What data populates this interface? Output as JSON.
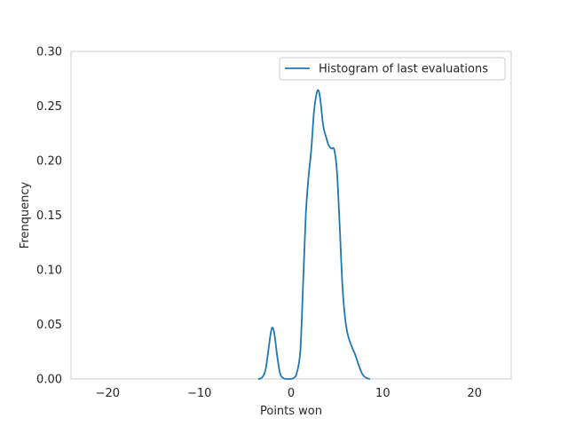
{
  "chart_data": {
    "type": "line",
    "title": "",
    "xlabel": "Points won",
    "ylabel": "Frenquency",
    "xlim": [
      -24,
      24
    ],
    "ylim": [
      0,
      0.3
    ],
    "xticks": [
      -20,
      -10,
      0,
      10,
      20
    ],
    "xtick_labels": [
      "−20",
      "−10",
      "0",
      "10",
      "20"
    ],
    "yticks": [
      0.0,
      0.05,
      0.1,
      0.15,
      0.2,
      0.25,
      0.3
    ],
    "ytick_labels": [
      "0.00",
      "0.05",
      "0.10",
      "0.15",
      "0.20",
      "0.25",
      "0.30"
    ],
    "grid": false,
    "legend_position": "top-right",
    "series": [
      {
        "name": "Histogram of last evaluations",
        "color": "#1f77b4",
        "x": [
          -3.6,
          -3.2,
          -2.8,
          -2.5,
          -2.2,
          -2.0,
          -1.8,
          -1.5,
          -1.2,
          -0.9,
          -0.6,
          -0.3,
          0.0,
          0.3,
          0.6,
          1.0,
          1.3,
          1.6,
          1.9,
          2.2,
          2.5,
          2.8,
          3.0,
          3.2,
          3.5,
          3.8,
          4.1,
          4.4,
          4.7,
          5.0,
          5.3,
          5.6,
          5.9,
          6.2,
          6.6,
          7.0,
          7.4,
          7.8,
          8.2,
          8.6
        ],
        "y": [
          0.0,
          0.001,
          0.008,
          0.025,
          0.043,
          0.047,
          0.04,
          0.02,
          0.005,
          0.001,
          0.0,
          0.0,
          0.0,
          0.001,
          0.005,
          0.025,
          0.085,
          0.15,
          0.185,
          0.21,
          0.245,
          0.262,
          0.264,
          0.255,
          0.232,
          0.222,
          0.214,
          0.211,
          0.21,
          0.19,
          0.14,
          0.085,
          0.055,
          0.04,
          0.03,
          0.022,
          0.012,
          0.004,
          0.001,
          0.0
        ]
      }
    ]
  }
}
